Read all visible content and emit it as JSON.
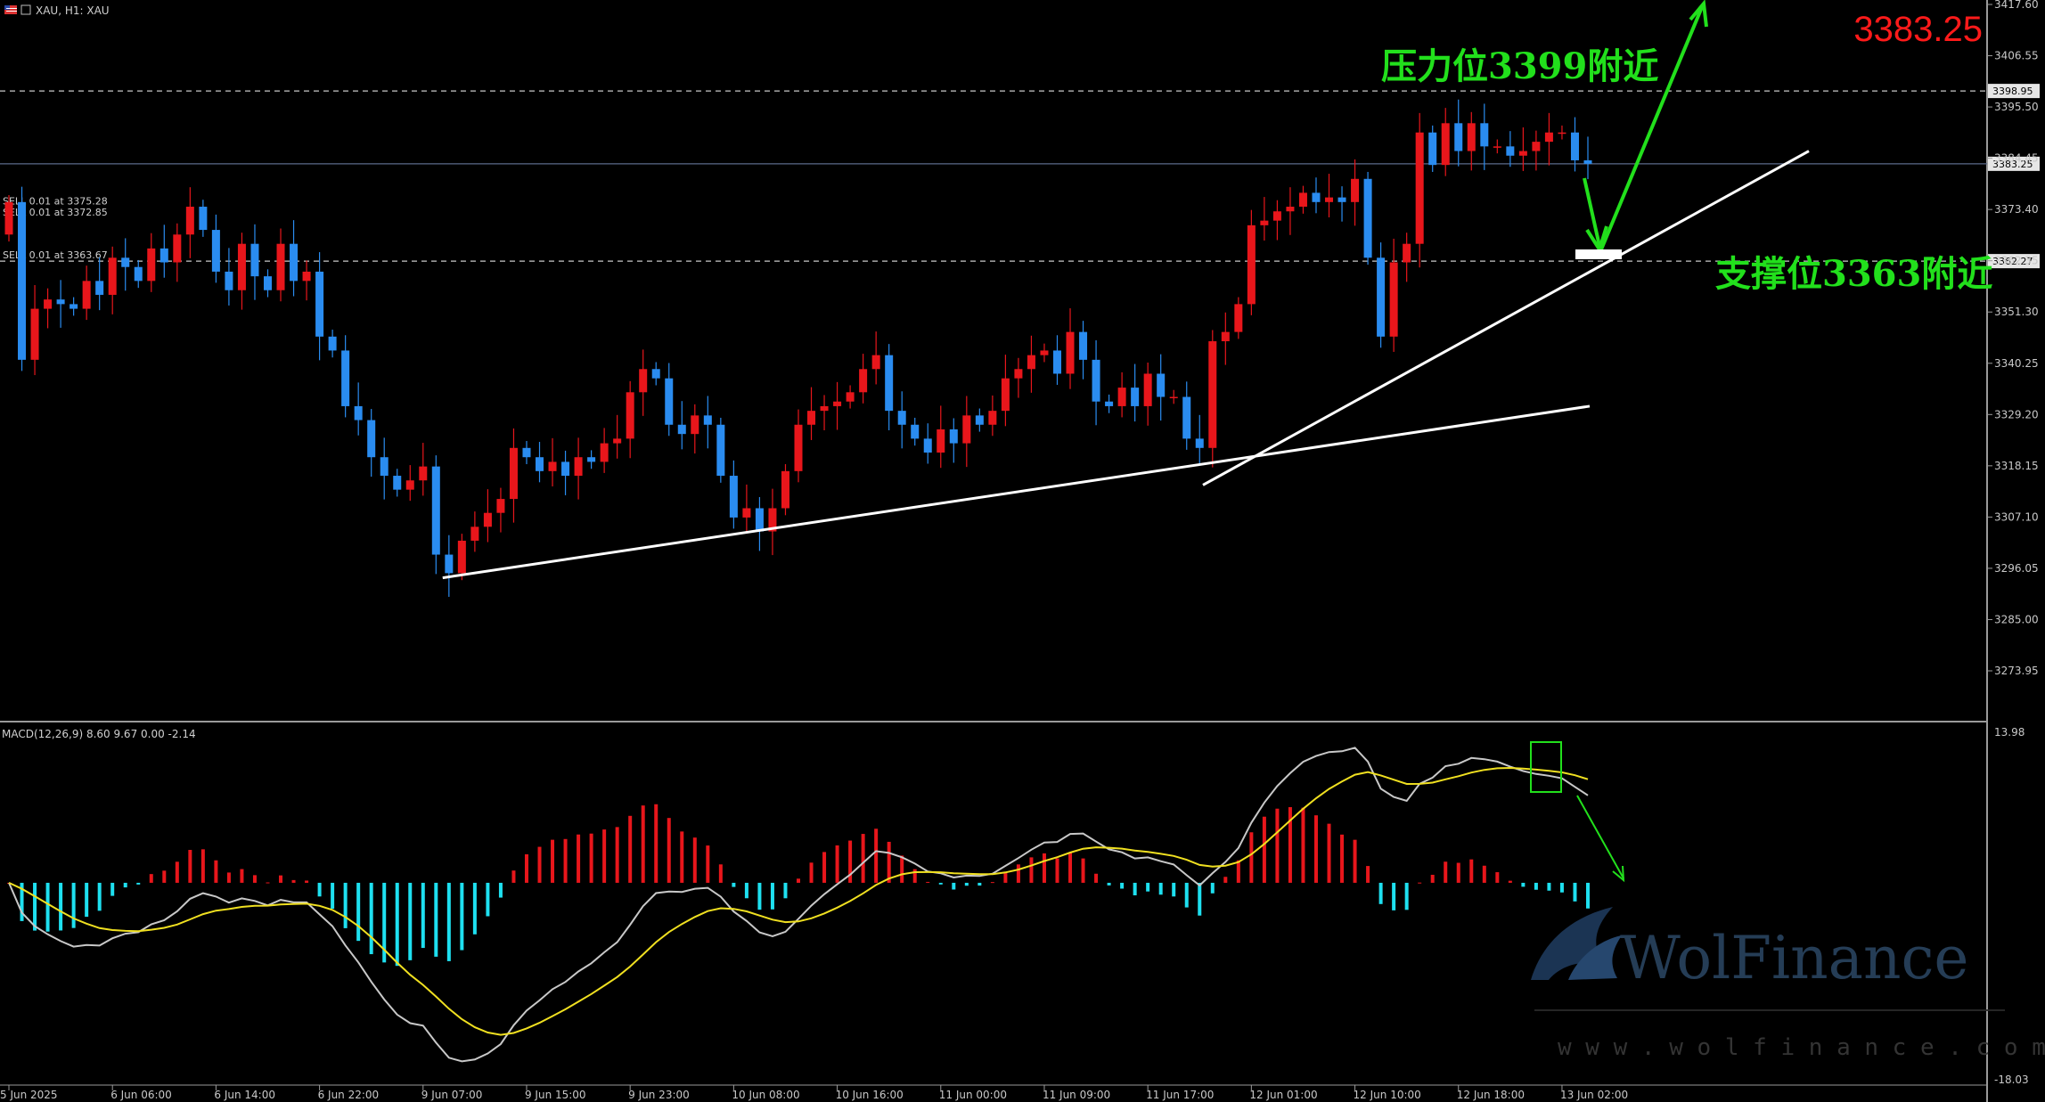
{
  "header": {
    "symbol_line": "XAU, H1: XAU",
    "flag_icon": "us-flag-icon"
  },
  "orders": [
    {
      "label": "SELL 0.01 at 3375.28",
      "price": 3375.28
    },
    {
      "label": "SELL 0.01 at 3372.85",
      "price": 3372.85
    },
    {
      "label": "SELL 0.01 at 3363.67",
      "price": 3363.67
    }
  ],
  "current_price_big": "3383.25",
  "annotations": {
    "resistance": "压力位3399附近",
    "support": "支撑位3363附近"
  },
  "levels": {
    "resistance": 3398.95,
    "resistance_label": "3398.95",
    "current": 3383.25,
    "current_label": "3383.25",
    "support": 3362.27,
    "support_label": "3362.27"
  },
  "macd": {
    "header": "MACD(12,26,9) 8.60 9.67 0.00 -2.14",
    "top_label": "13.98",
    "bottom_label": "-18.03"
  },
  "watermark": {
    "brand": "WolFinance",
    "url": "w w w . w o l f i n a n c e . c o m"
  },
  "colors": {
    "bull": "#e8161b",
    "bear": "#2a8cf0",
    "hist_pos": "#e8161b",
    "hist_neg": "#1ee0f0",
    "macd_line": "#c8c8c8",
    "signal_line": "#f0e020",
    "annotation": "#22e01c",
    "trendline": "#ffffff"
  },
  "chart_data": {
    "type": "candlestick",
    "timeframe": "H1",
    "symbol": "XAU",
    "y_ticks": [
      "3417.60",
      "3406.55",
      "3395.50",
      "3384.45",
      "3373.40",
      "3362.35",
      "3351.30",
      "3340.25",
      "3329.20",
      "3318.15",
      "3307.10",
      "3296.05",
      "3285.00",
      "3273.95"
    ],
    "ylim": [
      3268.0,
      3418.5
    ],
    "x_ticks": [
      "5 Jun 2025",
      "6 Jun 06:00",
      "6 Jun 14:00",
      "6 Jun 22:00",
      "9 Jun 07:00",
      "9 Jun 15:00",
      "9 Jun 23:00",
      "10 Jun 08:00",
      "10 Jun 16:00",
      "11 Jun 00:00",
      "11 Jun 09:00",
      "11 Jun 17:00",
      "12 Jun 01:00",
      "12 Jun 10:00",
      "12 Jun 18:00",
      "13 Jun 02:00"
    ],
    "closes": [
      3375,
      3341,
      3352,
      3354,
      3353,
      3352,
      3358,
      3355,
      3363,
      3361,
      3358,
      3365,
      3362,
      3368,
      3374,
      3369,
      3360,
      3356,
      3366,
      3359,
      3356,
      3366,
      3358,
      3360,
      3346,
      3343,
      3331,
      3328,
      3320,
      3316,
      3313,
      3315,
      3318,
      3299,
      3295,
      3302,
      3305,
      3308,
      3311,
      3322,
      3320,
      3317,
      3319,
      3316,
      3320,
      3319,
      3323,
      3324,
      3334,
      3339,
      3337,
      3327,
      3325,
      3329,
      3327,
      3316,
      3307,
      3309,
      3304,
      3309,
      3317,
      3327,
      3330,
      3331,
      3332,
      3334,
      3339,
      3342,
      3330,
      3327,
      3324,
      3321,
      3326,
      3323,
      3329,
      3327,
      3330,
      3337,
      3339,
      3342,
      3343,
      3338,
      3347,
      3341,
      3332,
      3331,
      3335,
      3331,
      3338,
      3333,
      3333,
      3324,
      3322,
      3345,
      3347,
      3353,
      3370,
      3371,
      3373,
      3374,
      3377,
      3375,
      3376,
      3375,
      3380,
      3363,
      3346,
      3362,
      3366,
      3390,
      3383,
      3392,
      3386,
      3392,
      3387,
      3387,
      3385,
      3386,
      3388,
      3390,
      3390,
      3384,
      3383.25
    ],
    "series_lines": [
      {
        "name": "MACD",
        "role": "main line"
      },
      {
        "name": "Signal",
        "role": "signal line"
      }
    ],
    "trendlines": [
      {
        "from": {
          "x": "9 Jun 07:00",
          "y": 3294
        },
        "to": {
          "x": "12 Jun 23:00",
          "y": 3331
        }
      },
      {
        "from": {
          "x": "11 Jun 22:00",
          "y": 3314
        },
        "to": {
          "x": "13 Jun 12:00",
          "y": 3386
        }
      }
    ],
    "macd_range": [
      -18.03,
      13.98
    ]
  }
}
